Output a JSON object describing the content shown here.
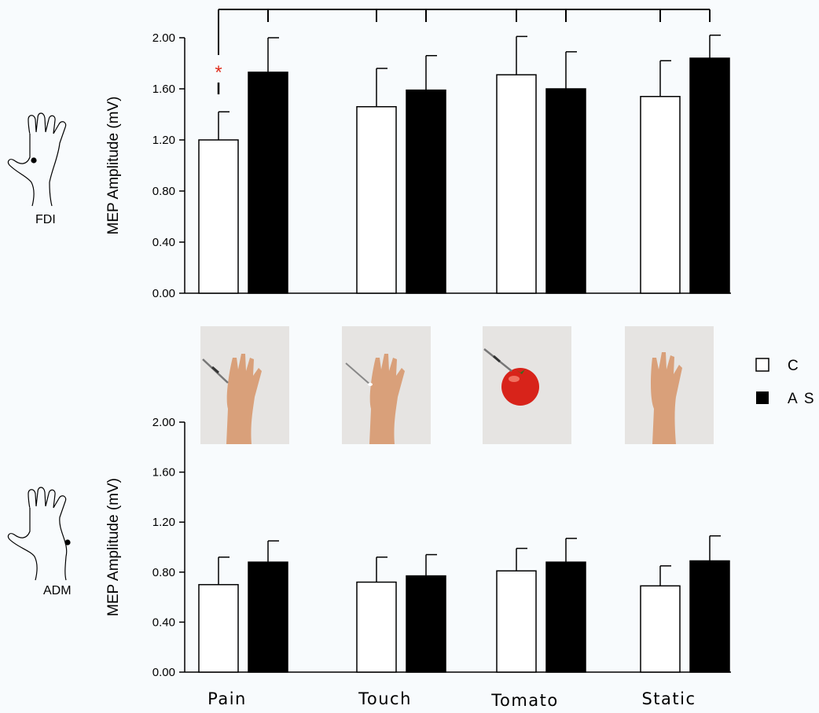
{
  "figure": {
    "categories": [
      "Pain",
      "Touch",
      "Tomato",
      "Static"
    ],
    "legend": [
      {
        "label": "C",
        "color": "#ffffff"
      },
      {
        "label": "A S",
        "color": "#000000"
      }
    ],
    "significance_marker": "*",
    "significance_color": "#e03020",
    "photos": [
      {
        "depicts": "hand with syringe needle"
      },
      {
        "depicts": "hand with cotton swab"
      },
      {
        "depicts": "tomato with syringe needle"
      },
      {
        "depicts": "static hand"
      }
    ]
  },
  "chart_data": [
    {
      "type": "bar",
      "muscle_label": "FDI",
      "ylabel": "MEP Amplitude (mV)",
      "ylim": [
        0,
        2.0
      ],
      "yticks": [
        "0.00",
        "0.40",
        "0.80",
        "1.20",
        "1.60",
        "2.00"
      ],
      "categories": [
        "Pain",
        "Touch",
        "Tomato",
        "Static"
      ],
      "series": [
        {
          "name": "C",
          "color": "#ffffff",
          "values": [
            1.2,
            1.46,
            1.71,
            1.54
          ],
          "errors": [
            0.22,
            0.3,
            0.3,
            0.28
          ]
        },
        {
          "name": "A S",
          "color": "#000000",
          "values": [
            1.73,
            1.59,
            1.6,
            1.84
          ],
          "errors": [
            0.27,
            0.27,
            0.29,
            0.18
          ]
        }
      ],
      "annotations": [
        {
          "text": "*",
          "category": "Pain",
          "series": "C"
        }
      ],
      "grid": false
    },
    {
      "type": "bar",
      "muscle_label": "ADM",
      "ylabel": "MEP Amplitude (mV)",
      "ylim": [
        0,
        2.0
      ],
      "yticks": [
        "0.00",
        "0.40",
        "0.80",
        "1.20",
        "1.60",
        "2.00"
      ],
      "categories": [
        "Pain",
        "Touch",
        "Tomato",
        "Static"
      ],
      "series": [
        {
          "name": "C",
          "color": "#ffffff",
          "values": [
            0.7,
            0.72,
            0.81,
            0.69
          ],
          "errors": [
            0.22,
            0.2,
            0.18,
            0.16
          ]
        },
        {
          "name": "A S",
          "color": "#000000",
          "values": [
            0.88,
            0.77,
            0.88,
            0.89
          ],
          "errors": [
            0.17,
            0.17,
            0.19,
            0.2
          ]
        }
      ],
      "grid": false
    }
  ]
}
